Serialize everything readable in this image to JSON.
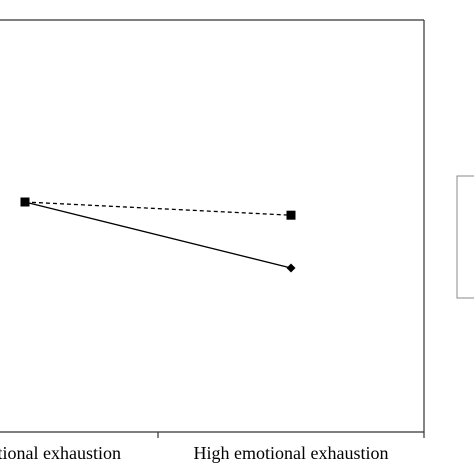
{
  "chart_data": {
    "type": "line",
    "categories": [
      "Low emotional exhaustion",
      "High emotional exhaustion"
    ],
    "title": "",
    "xlabel": "",
    "ylabel": "",
    "grid": false,
    "legend": "right, cropped; entries not visible",
    "series": [
      {
        "marker": "square",
        "line_style": "dashed",
        "color": "#000000",
        "values": [
          3.0,
          2.9
        ]
      },
      {
        "marker": "diamond",
        "line_style": "solid",
        "color": "#000000",
        "values": [
          3.0,
          2.5
        ]
      }
    ]
  }
}
